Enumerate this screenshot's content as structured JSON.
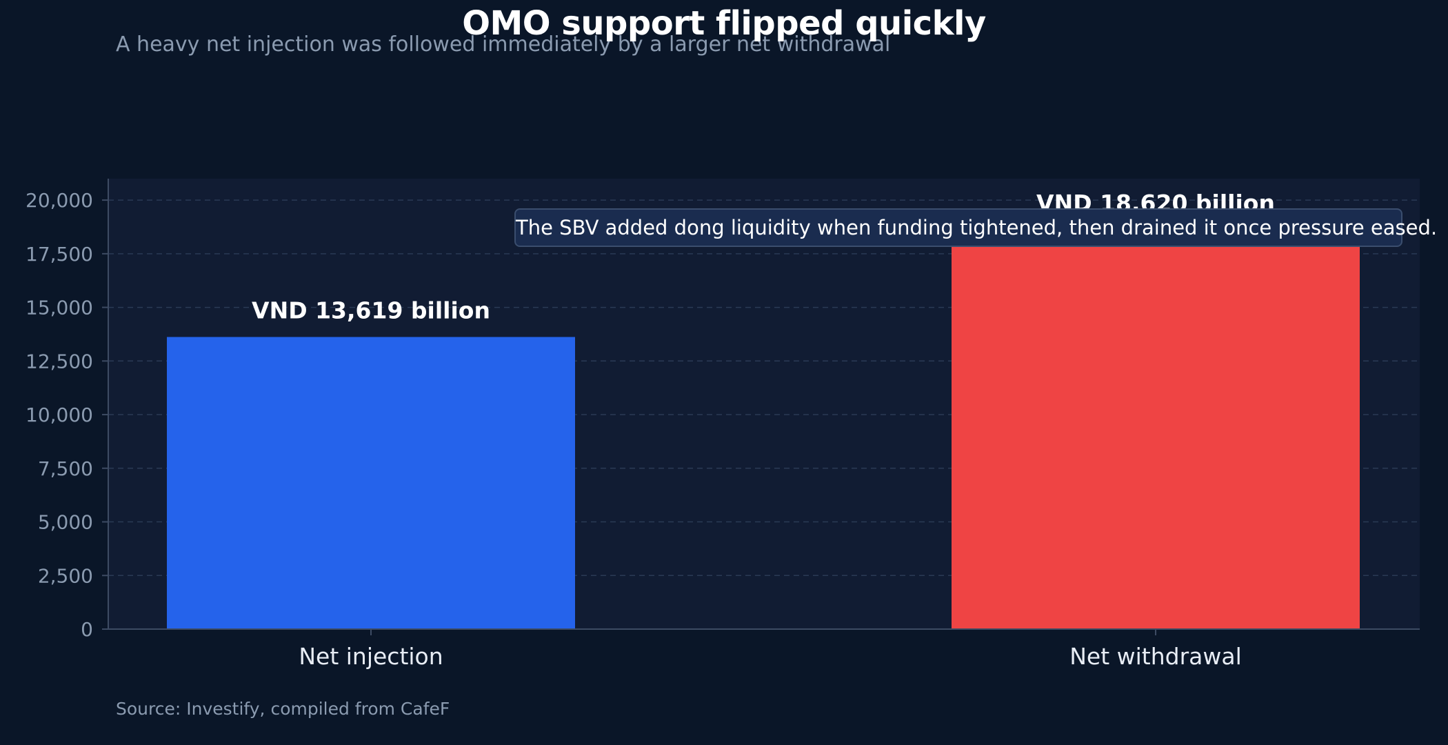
{
  "chart_data": {
    "type": "bar",
    "title": "OMO support flipped quickly",
    "subtitle": "A heavy net injection was followed immediately by a larger net withdrawal",
    "categories": [
      "Net injection",
      "Net withdrawal"
    ],
    "values": [
      13619,
      18620
    ],
    "data_labels": [
      "VND 13,619 billion",
      "VND 18,620 billion"
    ],
    "bar_colors": [
      "#2563eb",
      "#ef4444"
    ],
    "ylim": [
      0,
      21000
    ],
    "yticks": [
      0,
      2500,
      5000,
      7500,
      10000,
      12500,
      15000,
      17500,
      20000
    ],
    "ytick_labels": [
      "0",
      "2,500",
      "5,000",
      "7,500",
      "10,000",
      "12,500",
      "15,000",
      "17,500",
      "20,000"
    ],
    "grid": true,
    "xlabel": "",
    "ylabel": "",
    "annotation": "The SBV added dong liquidity when funding tightened, then drained it once pressure eased.",
    "source": "Source: Investify, compiled from CafeF"
  },
  "colors": {
    "background": "#0a1628",
    "plot_background": "#111c33",
    "grid": "#2a3a55",
    "axis": "#3d4b63",
    "tick_text": "#8b9bb0",
    "category_text": "#e8edf5"
  }
}
